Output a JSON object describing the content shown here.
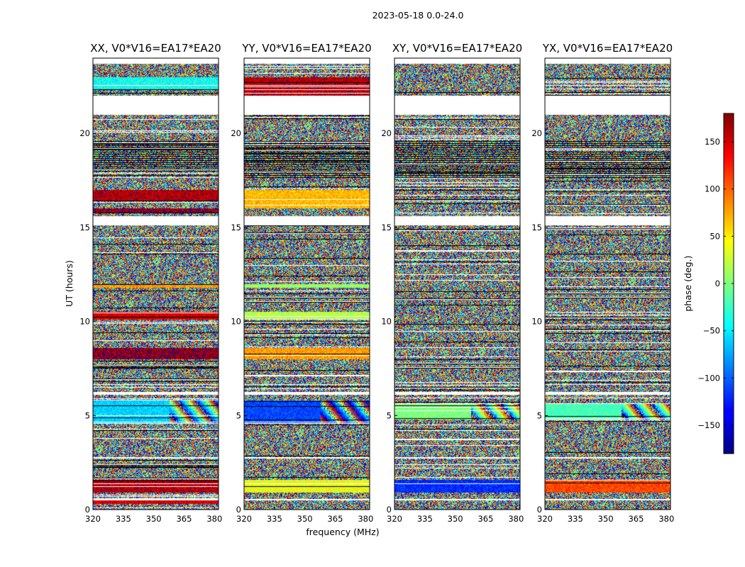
{
  "figure": {
    "suptitle": "2023-05-18 0.0-24.0"
  },
  "chart_data": {
    "type": "heatmap",
    "title": "2023-05-18 0.0-24.0",
    "xlabel": "frequency (MHz)",
    "ylabel": "UT (hours)",
    "xlim": [
      320,
      382
    ],
    "ylim": [
      0,
      24
    ],
    "x_ticks": [
      320,
      335,
      350,
      365,
      380
    ],
    "y_ticks": [
      0,
      5,
      10,
      15,
      20
    ],
    "colorbar": {
      "label": "phase (deg.)",
      "colormap": "jet",
      "range": [
        -180,
        180
      ],
      "ticks": [
        -150,
        -100,
        -50,
        0,
        50,
        100,
        150
      ]
    },
    "panels": [
      {
        "title": "XX, V0*V16=EA17*EA20",
        "coherent_bands": [
          {
            "ut": [
              0.3,
              0.6
            ],
            "phase": 150
          },
          {
            "ut": [
              0.9,
              1.6
            ],
            "phase": 160
          },
          {
            "ut": [
              4.6,
              5.8
            ],
            "phase": -60,
            "note": "fringe pattern above 360 MHz"
          },
          {
            "ut": [
              8.0,
              8.6
            ],
            "phase": 170
          },
          {
            "ut": [
              10.1,
              10.5
            ],
            "phase": 150
          },
          {
            "ut": [
              11.8,
              12.0
            ],
            "phase": 80
          },
          {
            "ut": [
              15.8,
              16.0
            ],
            "phase": 170
          },
          {
            "ut": [
              16.4,
              17.0
            ],
            "phase": 160
          },
          {
            "ut": [
              22.3,
              23.0
            ],
            "phase": -40
          }
        ]
      },
      {
        "title": "YY, V0*V16=EA17*EA20",
        "coherent_bands": [
          {
            "ut": [
              0.9,
              1.6
            ],
            "phase": 40
          },
          {
            "ut": [
              4.6,
              5.8
            ],
            "phase": -110,
            "note": "fringe pattern above 360 MHz"
          },
          {
            "ut": [
              8.0,
              8.6
            ],
            "phase": 80
          },
          {
            "ut": [
              10.1,
              10.5
            ],
            "phase": 20
          },
          {
            "ut": [
              11.8,
              12.0
            ],
            "phase": 10
          },
          {
            "ut": [
              16.0,
              17.0
            ],
            "phase": 70
          },
          {
            "ut": [
              22.0,
              23.0
            ],
            "phase": 160
          }
        ]
      },
      {
        "title": "XY, V0*V16=EA17*EA20",
        "coherent_bands": [
          {
            "ut": [
              0.9,
              1.6
            ],
            "phase": -120
          },
          {
            "ut": [
              4.8,
              5.6
            ],
            "phase": 0,
            "note": "fringe pattern above 355 MHz"
          }
        ]
      },
      {
        "title": "YX, V0*V16=EA17*EA20",
        "coherent_bands": [
          {
            "ut": [
              0.9,
              1.6
            ],
            "phase": 110
          },
          {
            "ut": [
              4.8,
              5.6
            ],
            "phase": -20,
            "note": "fringe pattern above 355 MHz"
          }
        ]
      }
    ],
    "data_gaps_ut": [
      [
        21.0,
        22.0
      ],
      [
        15.1,
        15.6
      ],
      [
        0.5,
        0.55
      ],
      [
        2.7,
        2.8
      ],
      [
        6.1,
        6.25
      ]
    ],
    "flagged_black_bands_ut": [
      [
        17.6,
        19.6
      ]
    ],
    "noise_description": "random phase (-180 to 180 deg) across all channels elsewhere"
  }
}
